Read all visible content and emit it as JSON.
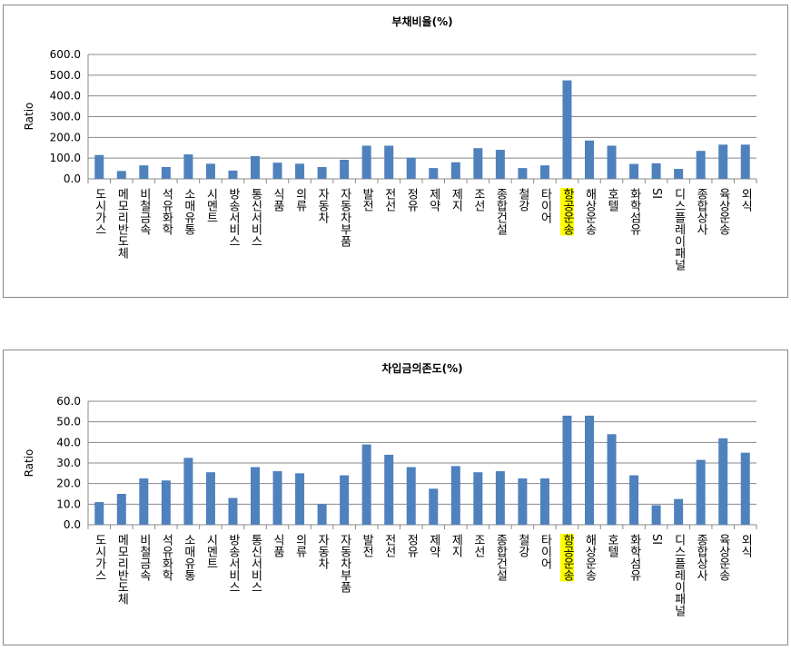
{
  "chart_data": [
    {
      "type": "bar",
      "title": "부채비율(%)",
      "y_label": "Ratio",
      "categories": [
        "도시가스",
        "메모리반도체",
        "비철금속",
        "석유화학",
        "소매유통",
        "시멘트",
        "방송서비스",
        "통신서비스",
        "식품",
        "의류",
        "자동차",
        "자동차부품",
        "발전",
        "전선",
        "정유",
        "제약",
        "제지",
        "조선",
        "종합건설",
        "철강",
        "타이어",
        "항공운송",
        "해상운송",
        "호텔",
        "화학섬유",
        "SI",
        "디스플레이패널",
        "종합상사",
        "육상운송",
        "외식"
      ],
      "values": [
        115,
        38,
        65,
        57,
        118,
        73,
        40,
        110,
        78,
        73,
        57,
        92,
        160,
        160,
        102,
        52,
        80,
        148,
        140,
        52,
        65,
        475,
        185,
        160,
        72,
        75,
        48,
        135,
        165,
        165
      ],
      "color": "#4f81bd",
      "highlight_color": "#ffff00",
      "highlight_index": 21,
      "ylim": [
        0,
        600
      ],
      "yticks": [
        {
          "value": 0,
          "label": "0.0"
        },
        {
          "value": 100,
          "label": "100.0"
        },
        {
          "value": 200,
          "label": "200.0"
        },
        {
          "value": 300,
          "label": "300.0"
        },
        {
          "value": 400,
          "label": "400.0"
        },
        {
          "value": 500,
          "label": "500.0"
        },
        {
          "value": 600,
          "label": "600.0"
        }
      ],
      "grid": true
    },
    {
      "type": "bar",
      "title": "차입금의존도(%)",
      "y_label": "Ratio",
      "categories": [
        "도시가스",
        "메모리반도체",
        "비철금속",
        "석유화학",
        "소매유통",
        "시멘트",
        "방송서비스",
        "통신서비스",
        "식품",
        "의류",
        "자동차",
        "자동차부품",
        "발전",
        "전선",
        "정유",
        "제약",
        "제지",
        "조선",
        "종합건설",
        "철강",
        "타이어",
        "항공운송",
        "해상운송",
        "호텔",
        "화학섬유",
        "SI",
        "디스플레이패널",
        "종합상사",
        "육상운송",
        "외식"
      ],
      "values": [
        11,
        15,
        22.5,
        21.5,
        32.5,
        25.5,
        13,
        28,
        26,
        25,
        10,
        24,
        39,
        34,
        28,
        17.5,
        28.5,
        25.5,
        26,
        22.5,
        22.5,
        53,
        53,
        44,
        24,
        9.5,
        12.5,
        31.5,
        42,
        35
      ],
      "color": "#4f81bd",
      "highlight_color": "#ffff00",
      "highlight_index": 21,
      "ylim": [
        0,
        60
      ],
      "yticks": [
        {
          "value": 0,
          "label": "0.0"
        },
        {
          "value": 10,
          "label": "10.0"
        },
        {
          "value": 20,
          "label": "20.0"
        },
        {
          "value": 30,
          "label": "30.0"
        },
        {
          "value": 40,
          "label": "40.0"
        },
        {
          "value": 50,
          "label": "50.0"
        },
        {
          "value": 60,
          "label": "60.0"
        }
      ],
      "grid": true
    }
  ]
}
